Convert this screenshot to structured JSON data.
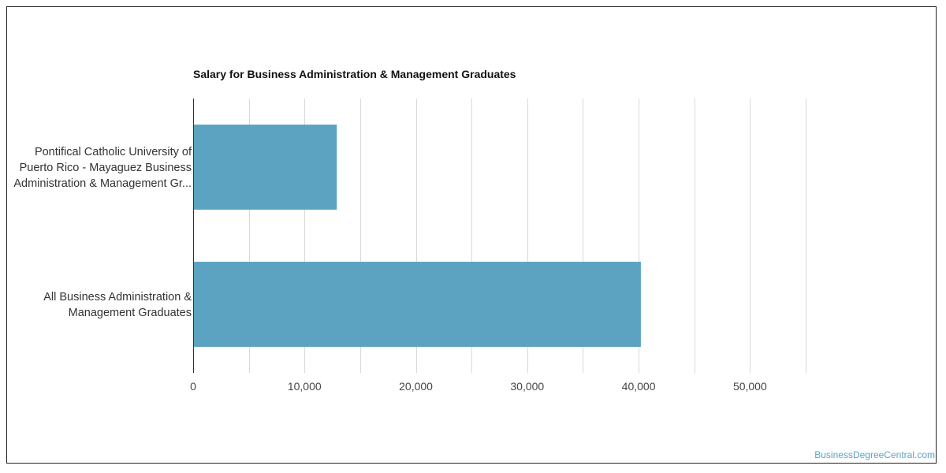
{
  "chart_data": {
    "type": "bar",
    "orientation": "horizontal",
    "title": "Salary for Business Administration & Management Graduates",
    "categories": [
      [
        "Pontifical Catholic University of",
        "Puerto Rico - Mayaguez Business",
        "Administration & Management Gr..."
      ],
      [
        "All Business Administration &",
        "Management Graduates"
      ]
    ],
    "values": [
      12900,
      40200
    ],
    "xlim": [
      0,
      55000
    ],
    "ticks": [
      0,
      10000,
      20000,
      30000,
      40000,
      50000
    ],
    "tick_labels": [
      "0",
      "10,000",
      "20,000",
      "30,000",
      "40,000",
      "50,000"
    ],
    "bar_color": "#5ba3c0",
    "grid": true,
    "xlabel": "",
    "ylabel": ""
  },
  "watermark": "BusinessDegreeCentral.com"
}
